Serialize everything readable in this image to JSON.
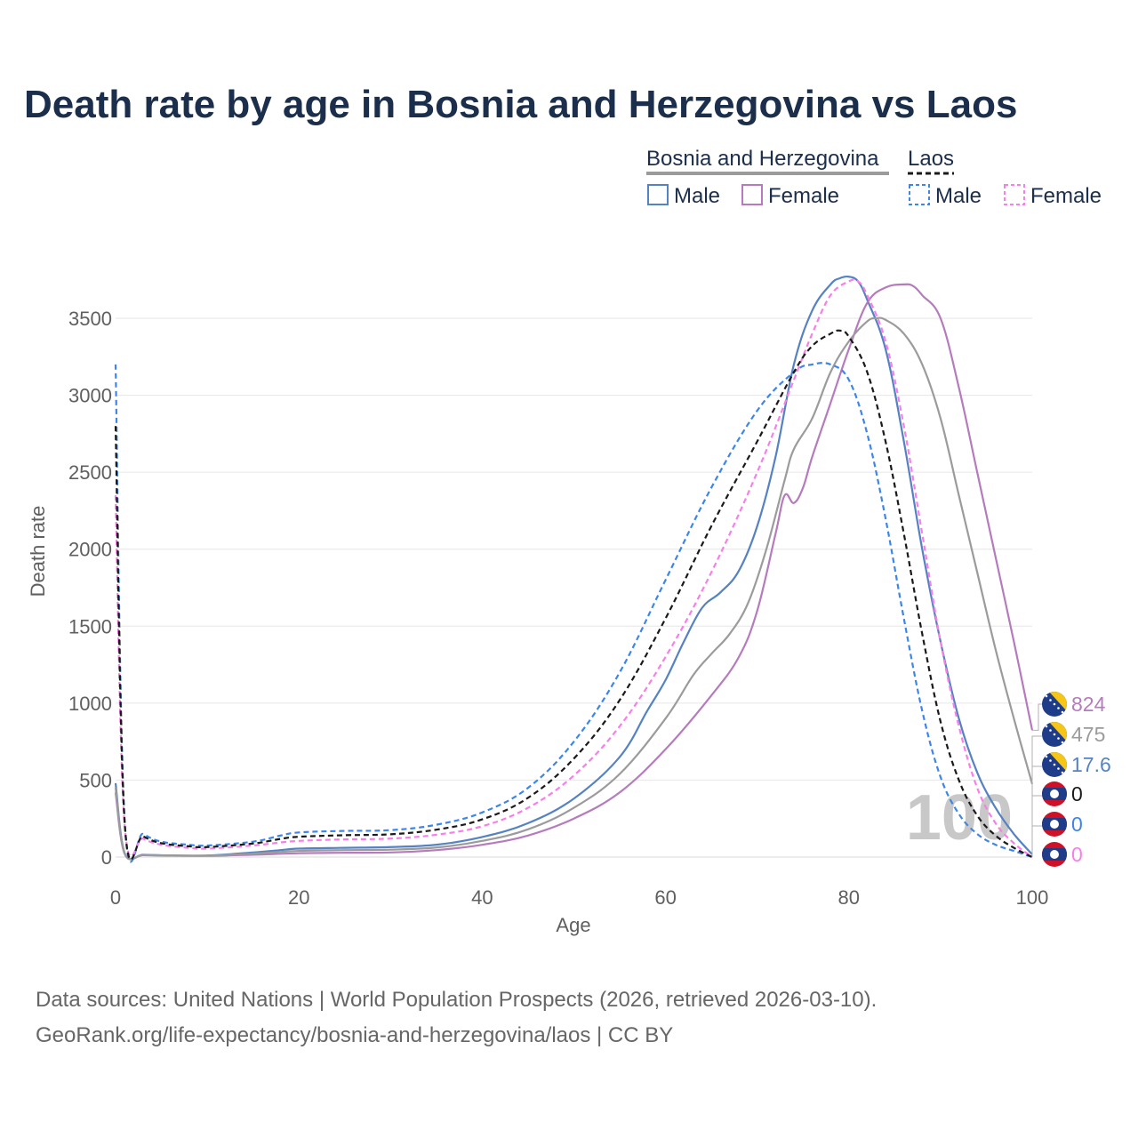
{
  "chart_data": {
    "type": "line",
    "title": "Death rate by age in Bosnia and Herzegovina vs Laos",
    "xlabel": "Age",
    "ylabel": "Death rate",
    "xlim": [
      0,
      100
    ],
    "ylim": [
      0,
      3700
    ],
    "x_ticks": [
      "0",
      "20",
      "40",
      "60",
      "80",
      "100"
    ],
    "y_ticks": [
      "0",
      "500",
      "1000",
      "1500",
      "2000",
      "2500",
      "3000",
      "3500"
    ],
    "current_age_label": "100",
    "legend": {
      "groups": [
        {
          "name": "Bosnia and Herzegovina",
          "entries": [
            "Male",
            "Female"
          ]
        },
        {
          "name": "Laos",
          "entries": [
            "Male",
            "Female"
          ]
        }
      ],
      "placement": "top-right"
    },
    "series": [
      {
        "name": "Bosnia and Herzegovina Male",
        "country": "Bosnia and Herzegovina",
        "color": "#5582c2",
        "dash": false,
        "points": [
          [
            0,
            480
          ],
          [
            1,
            25
          ],
          [
            3,
            15
          ],
          [
            5,
            12
          ],
          [
            10,
            10
          ],
          [
            15,
            30
          ],
          [
            18,
            45
          ],
          [
            20,
            55
          ],
          [
            25,
            60
          ],
          [
            30,
            65
          ],
          [
            35,
            80
          ],
          [
            40,
            130
          ],
          [
            45,
            220
          ],
          [
            50,
            380
          ],
          [
            55,
            650
          ],
          [
            58,
            950
          ],
          [
            60,
            1150
          ],
          [
            62,
            1400
          ],
          [
            64,
            1620
          ],
          [
            66,
            1720
          ],
          [
            68,
            1860
          ],
          [
            70,
            2150
          ],
          [
            72,
            2600
          ],
          [
            74,
            3200
          ],
          [
            76,
            3550
          ],
          [
            78,
            3720
          ],
          [
            79,
            3760
          ],
          [
            80,
            3770
          ],
          [
            81,
            3740
          ],
          [
            82,
            3620
          ],
          [
            84,
            3300
          ],
          [
            86,
            2700
          ],
          [
            88,
            2000
          ],
          [
            90,
            1400
          ],
          [
            92,
            900
          ],
          [
            94,
            550
          ],
          [
            96,
            320
          ],
          [
            98,
            150
          ],
          [
            100,
            17.6
          ]
        ]
      },
      {
        "name": "Bosnia and Herzegovina Female",
        "country": "Bosnia and Herzegovina",
        "color": "#b57bbd",
        "dash": false,
        "points": [
          [
            0,
            420
          ],
          [
            1,
            20
          ],
          [
            3,
            12
          ],
          [
            5,
            10
          ],
          [
            10,
            8
          ],
          [
            15,
            15
          ],
          [
            20,
            25
          ],
          [
            25,
            28
          ],
          [
            30,
            30
          ],
          [
            35,
            45
          ],
          [
            40,
            80
          ],
          [
            45,
            140
          ],
          [
            50,
            250
          ],
          [
            55,
            420
          ],
          [
            60,
            700
          ],
          [
            65,
            1050
          ],
          [
            68,
            1300
          ],
          [
            70,
            1600
          ],
          [
            72,
            2100
          ],
          [
            73,
            2350
          ],
          [
            74,
            2300
          ],
          [
            75,
            2400
          ],
          [
            76,
            2600
          ],
          [
            78,
            2950
          ],
          [
            80,
            3300
          ],
          [
            82,
            3600
          ],
          [
            84,
            3700
          ],
          [
            86,
            3720
          ],
          [
            87,
            3710
          ],
          [
            88,
            3650
          ],
          [
            90,
            3500
          ],
          [
            92,
            3050
          ],
          [
            94,
            2500
          ],
          [
            96,
            1950
          ],
          [
            98,
            1400
          ],
          [
            100,
            824
          ]
        ]
      },
      {
        "name": "Bosnia and Herzegovina Both",
        "country": "Bosnia and Herzegovina",
        "color": "#9b9b9b",
        "dash": false,
        "points": [
          [
            0,
            450
          ],
          [
            1,
            22
          ],
          [
            3,
            14
          ],
          [
            5,
            11
          ],
          [
            10,
            9
          ],
          [
            15,
            22
          ],
          [
            20,
            40
          ],
          [
            25,
            45
          ],
          [
            30,
            48
          ],
          [
            35,
            62
          ],
          [
            40,
            105
          ],
          [
            45,
            180
          ],
          [
            50,
            320
          ],
          [
            55,
            540
          ],
          [
            60,
            900
          ],
          [
            63,
            1180
          ],
          [
            65,
            1320
          ],
          [
            67,
            1450
          ],
          [
            69,
            1650
          ],
          [
            71,
            2000
          ],
          [
            73,
            2450
          ],
          [
            74,
            2650
          ],
          [
            76,
            2850
          ],
          [
            78,
            3150
          ],
          [
            80,
            3350
          ],
          [
            82,
            3480
          ],
          [
            83,
            3500
          ],
          [
            84,
            3490
          ],
          [
            86,
            3400
          ],
          [
            88,
            3200
          ],
          [
            90,
            2850
          ],
          [
            92,
            2350
          ],
          [
            94,
            1850
          ],
          [
            96,
            1350
          ],
          [
            98,
            900
          ],
          [
            100,
            475
          ]
        ]
      },
      {
        "name": "Laos Male",
        "country": "Laos",
        "color": "#3d86e8",
        "dash": true,
        "points": [
          [
            0,
            3200
          ],
          [
            1,
            230
          ],
          [
            3,
            150
          ],
          [
            5,
            100
          ],
          [
            8,
            80
          ],
          [
            10,
            75
          ],
          [
            15,
            100
          ],
          [
            18,
            140
          ],
          [
            20,
            160
          ],
          [
            25,
            170
          ],
          [
            30,
            175
          ],
          [
            35,
            210
          ],
          [
            40,
            290
          ],
          [
            45,
            450
          ],
          [
            50,
            750
          ],
          [
            55,
            1200
          ],
          [
            60,
            1800
          ],
          [
            65,
            2400
          ],
          [
            70,
            2900
          ],
          [
            74,
            3150
          ],
          [
            76,
            3200
          ],
          [
            78,
            3200
          ],
          [
            80,
            3100
          ],
          [
            82,
            2750
          ],
          [
            84,
            2200
          ],
          [
            86,
            1550
          ],
          [
            88,
            950
          ],
          [
            90,
            520
          ],
          [
            92,
            280
          ],
          [
            94,
            150
          ],
          [
            96,
            80
          ],
          [
            98,
            40
          ],
          [
            100,
            0
          ]
        ]
      },
      {
        "name": "Laos Female",
        "country": "Laos",
        "color": "#f77fe8",
        "dash": true,
        "points": [
          [
            0,
            2350
          ],
          [
            1,
            200
          ],
          [
            3,
            120
          ],
          [
            5,
            80
          ],
          [
            8,
            60
          ],
          [
            10,
            55
          ],
          [
            15,
            75
          ],
          [
            18,
            95
          ],
          [
            20,
            105
          ],
          [
            25,
            115
          ],
          [
            30,
            120
          ],
          [
            35,
            145
          ],
          [
            40,
            200
          ],
          [
            45,
            320
          ],
          [
            50,
            530
          ],
          [
            55,
            850
          ],
          [
            60,
            1300
          ],
          [
            65,
            1850
          ],
          [
            70,
            2500
          ],
          [
            74,
            3100
          ],
          [
            76,
            3400
          ],
          [
            78,
            3650
          ],
          [
            80,
            3740
          ],
          [
            81,
            3740
          ],
          [
            82,
            3650
          ],
          [
            84,
            3350
          ],
          [
            86,
            2800
          ],
          [
            88,
            2100
          ],
          [
            90,
            1400
          ],
          [
            92,
            850
          ],
          [
            94,
            450
          ],
          [
            96,
            220
          ],
          [
            98,
            90
          ],
          [
            100,
            0
          ]
        ]
      },
      {
        "name": "Laos Both",
        "country": "Laos",
        "color": "#1a1a1a",
        "dash": true,
        "points": [
          [
            0,
            2800
          ],
          [
            1,
            215
          ],
          [
            3,
            135
          ],
          [
            5,
            90
          ],
          [
            8,
            70
          ],
          [
            10,
            65
          ],
          [
            15,
            88
          ],
          [
            18,
            118
          ],
          [
            20,
            132
          ],
          [
            25,
            142
          ],
          [
            30,
            148
          ],
          [
            35,
            178
          ],
          [
            40,
            245
          ],
          [
            45,
            385
          ],
          [
            50,
            640
          ],
          [
            55,
            1020
          ],
          [
            60,
            1550
          ],
          [
            65,
            2150
          ],
          [
            70,
            2700
          ],
          [
            74,
            3150
          ],
          [
            76,
            3320
          ],
          [
            78,
            3400
          ],
          [
            79,
            3420
          ],
          [
            80,
            3380
          ],
          [
            82,
            3150
          ],
          [
            84,
            2700
          ],
          [
            86,
            2100
          ],
          [
            88,
            1450
          ],
          [
            90,
            880
          ],
          [
            92,
            500
          ],
          [
            94,
            270
          ],
          [
            96,
            140
          ],
          [
            98,
            60
          ],
          [
            100,
            0
          ]
        ]
      }
    ],
    "end_values": [
      {
        "label": "824",
        "country": "Bosnia and Herzegovina",
        "color": "#b57bbd"
      },
      {
        "label": "475",
        "country": "Bosnia and Herzegovina",
        "color": "#9b9b9b"
      },
      {
        "label": "17.6",
        "country": "Bosnia and Herzegovina",
        "color": "#5582c2"
      },
      {
        "label": "0",
        "country": "Laos",
        "color": "#1a1a1a"
      },
      {
        "label": "0",
        "country": "Laos",
        "color": "#3d86e8"
      },
      {
        "label": "0",
        "country": "Laos",
        "color": "#f77fe8"
      }
    ]
  },
  "legend": {
    "bosnia_title": "Bosnia and Herzegovina",
    "laos_title": "Laos",
    "male": "Male",
    "female": "Female"
  },
  "source": {
    "line1": "Data sources: United Nations | World Population Prospects (2026, retrieved 2026-03-10).",
    "line2": "GeoRank.org/life-expectancy/bosnia-and-herzegovina/laos | CC BY"
  },
  "colors": {
    "title": "#1b2e4b",
    "grid": "#e6e6e6",
    "bosnia_flag_blue": "#1f3c88",
    "bosnia_flag_yellow": "#f5c518",
    "laos_flag_red": "#ce1126",
    "laos_flag_blue": "#1f3c88"
  }
}
